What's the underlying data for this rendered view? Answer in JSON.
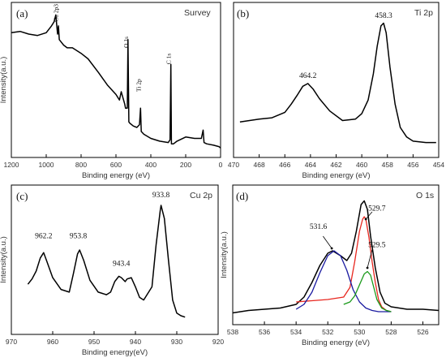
{
  "panels": [
    {
      "id": "a",
      "label": "(a)",
      "title": "Survey",
      "xlabel": "Binding energy (eV)",
      "ylabel": "Intensity(a.u.)",
      "xlim": [
        1200,
        0
      ],
      "xticks": [
        1200,
        1000,
        800,
        600,
        400,
        200,
        0
      ],
      "annotations": [
        {
          "text": "Cu 2p3",
          "x": 932,
          "y": 0.93,
          "rotate": true
        },
        {
          "text": "O 1s",
          "x": 531,
          "y": 0.74,
          "rotate": true
        },
        {
          "text": "Ti 2p",
          "x": 459,
          "y": 0.42,
          "rotate": true
        },
        {
          "text": "C 1s",
          "x": 285,
          "y": 0.62,
          "rotate": true
        }
      ]
    },
    {
      "id": "b",
      "label": "(b)",
      "title": "Ti 2p",
      "xlabel": "Binding energy (eV)",
      "ylabel": "",
      "xlim": [
        470,
        454
      ],
      "xticks": [
        470,
        468,
        466,
        464,
        462,
        460,
        458,
        456,
        454
      ],
      "annotations": [
        {
          "text": "464.2",
          "x": 464.2,
          "y": 0.52
        },
        {
          "text": "458.3",
          "x": 458.3,
          "y": 0.96
        }
      ]
    },
    {
      "id": "c",
      "label": "(c)",
      "title": "Cu 2p",
      "xlabel": "Binding  energy(eV)",
      "ylabel": "Intensity(a.u.)",
      "xlim": [
        970,
        920
      ],
      "xticks": [
        970,
        960,
        950,
        940,
        930,
        920
      ],
      "annotations": [
        {
          "text": "962.2",
          "x": 962.2,
          "y": 0.67
        },
        {
          "text": "953.8",
          "x": 953.8,
          "y": 0.67
        },
        {
          "text": "943.4",
          "x": 943.4,
          "y": 0.46
        },
        {
          "text": "933.8",
          "x": 933.8,
          "y": 0.98
        }
      ]
    },
    {
      "id": "d",
      "label": "(d)",
      "title": "O 1s",
      "xlabel": "Binding energy (eV)",
      "ylabel": "Intensity(a.u.)",
      "xlim": [
        538,
        525
      ],
      "xticks": [
        538,
        536,
        534,
        532,
        530,
        528,
        526
      ],
      "annotations": [
        {
          "text": "531.6",
          "x": 532.6,
          "y": 0.72
        },
        {
          "text": "529.7",
          "x": 528.9,
          "y": 0.87
        },
        {
          "text": "529.5",
          "x": 528.9,
          "y": 0.57
        }
      ]
    }
  ],
  "chart_data": [
    {
      "panel": "a",
      "type": "line",
      "title": "Survey",
      "xlabel": "Binding energy (eV)",
      "ylabel": "Intensity(a.u.)",
      "xlim": [
        1200,
        0
      ],
      "ylim": [
        0,
        1
      ],
      "series": [
        {
          "color": "#000000",
          "x": [
            1200,
            1150,
            1100,
            1050,
            1000,
            970,
            955,
            945,
            935,
            930,
            925,
            900,
            880,
            850,
            800,
            760,
            700,
            650,
            600,
            580,
            570,
            550,
            545,
            535,
            531,
            526,
            520,
            500,
            480,
            465,
            459,
            455,
            440,
            400,
            350,
            300,
            290,
            285,
            282,
            270,
            250,
            200,
            150,
            110,
            100,
            95,
            80,
            40,
            10,
            0
          ],
          "y": [
            0.85,
            0.86,
            0.84,
            0.83,
            0.85,
            0.9,
            0.93,
            0.98,
            0.84,
            0.9,
            0.8,
            0.76,
            0.74,
            0.74,
            0.7,
            0.66,
            0.56,
            0.47,
            0.4,
            0.36,
            0.42,
            0.33,
            0.3,
            0.3,
            0.8,
            0.2,
            0.19,
            0.17,
            0.16,
            0.18,
            0.3,
            0.13,
            0.11,
            0.08,
            0.06,
            0.05,
            0.07,
            0.62,
            0.04,
            0.04,
            0.06,
            0.09,
            0.08,
            0.08,
            0.14,
            0.05,
            0.04,
            0.03,
            0.02,
            0.01
          ]
        }
      ]
    },
    {
      "panel": "b",
      "type": "line",
      "title": "Ti 2p",
      "xlabel": "Binding energy (eV)",
      "xlim": [
        470,
        454
      ],
      "ylim": [
        0,
        1
      ],
      "series": [
        {
          "color": "#000000",
          "x": [
            469.5,
            468,
            467,
            466,
            465.5,
            465,
            464.6,
            464.2,
            463.8,
            463.3,
            462.5,
            461.5,
            460.5,
            460,
            459.5,
            459.1,
            458.8,
            458.5,
            458.3,
            458.1,
            457.8,
            457.4,
            457,
            456.5,
            456,
            455,
            454.2
          ],
          "y": [
            0.2,
            0.22,
            0.23,
            0.27,
            0.33,
            0.4,
            0.46,
            0.48,
            0.44,
            0.37,
            0.28,
            0.21,
            0.22,
            0.26,
            0.36,
            0.55,
            0.75,
            0.9,
            0.92,
            0.85,
            0.6,
            0.33,
            0.16,
            0.09,
            0.06,
            0.05,
            0.05
          ]
        }
      ]
    },
    {
      "panel": "c",
      "type": "line",
      "title": "Cu 2p",
      "xlabel": "Binding  energy(eV)",
      "ylabel": "Intensity(a.u.)",
      "xlim": [
        970,
        920
      ],
      "ylim": [
        0,
        1
      ],
      "series": [
        {
          "color": "#000000",
          "x": [
            966,
            965,
            964,
            963,
            962.2,
            961.5,
            960,
            958,
            956,
            955,
            954,
            953.5,
            952.5,
            951,
            949,
            947,
            946,
            945,
            944,
            943.4,
            942.5,
            942,
            941,
            940,
            939,
            938,
            936,
            935,
            934,
            933.8,
            933,
            932,
            931,
            930,
            929,
            928
          ],
          "y": [
            0.32,
            0.36,
            0.42,
            0.52,
            0.56,
            0.5,
            0.37,
            0.28,
            0.26,
            0.4,
            0.55,
            0.58,
            0.5,
            0.35,
            0.26,
            0.24,
            0.26,
            0.34,
            0.38,
            0.37,
            0.34,
            0.36,
            0.37,
            0.3,
            0.22,
            0.2,
            0.3,
            0.62,
            0.88,
            0.92,
            0.82,
            0.5,
            0.2,
            0.1,
            0.08,
            0.07
          ]
        }
      ]
    },
    {
      "panel": "d",
      "type": "line",
      "title": "O 1s",
      "xlabel": "Binding energy (eV)",
      "ylabel": "Intensity(a.u.)",
      "xlim": [
        538,
        525
      ],
      "ylim": [
        0,
        1
      ],
      "series": [
        {
          "color": "#000000",
          "x": [
            538,
            537,
            536,
            535,
            534,
            533.5,
            533,
            532.5,
            532,
            531.7,
            531.2,
            530.8,
            530.5,
            530.2,
            529.9,
            529.7,
            529.5,
            529.3,
            529,
            528.7,
            528.4,
            528,
            527.5,
            527,
            526,
            525
          ],
          "y": [
            0.03,
            0.05,
            0.06,
            0.07,
            0.1,
            0.16,
            0.28,
            0.42,
            0.52,
            0.54,
            0.5,
            0.46,
            0.52,
            0.7,
            0.92,
            0.95,
            0.88,
            0.66,
            0.4,
            0.2,
            0.11,
            0.08,
            0.07,
            0.06,
            0.06,
            0.05
          ]
        },
        {
          "color": "#e8271f",
          "x": [
            534,
            533,
            532,
            531,
            530.6,
            530.3,
            530,
            529.8,
            529.7,
            529.6,
            529.4,
            529.2,
            529,
            528.8,
            528.6,
            528.3,
            528
          ],
          "y": [
            0.12,
            0.13,
            0.14,
            0.16,
            0.24,
            0.45,
            0.7,
            0.8,
            0.82,
            0.8,
            0.65,
            0.45,
            0.28,
            0.14,
            0.08,
            0.05,
            0.04
          ]
        },
        {
          "color": "#1a1aa0",
          "x": [
            534,
            533.5,
            533,
            532.5,
            532,
            531.6,
            531.2,
            530.8,
            530.4,
            530,
            529.6,
            529.2,
            528.8,
            528.4,
            528
          ],
          "y": [
            0.06,
            0.1,
            0.2,
            0.36,
            0.5,
            0.54,
            0.5,
            0.38,
            0.22,
            0.12,
            0.07,
            0.05,
            0.04,
            0.04,
            0.04
          ]
        },
        {
          "color": "#1a9a1a",
          "x": [
            531,
            530.6,
            530.3,
            530,
            529.7,
            529.5,
            529.3,
            529.1,
            528.9,
            528.6,
            528.3,
            528
          ],
          "y": [
            0.1,
            0.12,
            0.17,
            0.26,
            0.35,
            0.37,
            0.34,
            0.24,
            0.14,
            0.07,
            0.05,
            0.04
          ]
        }
      ]
    }
  ]
}
